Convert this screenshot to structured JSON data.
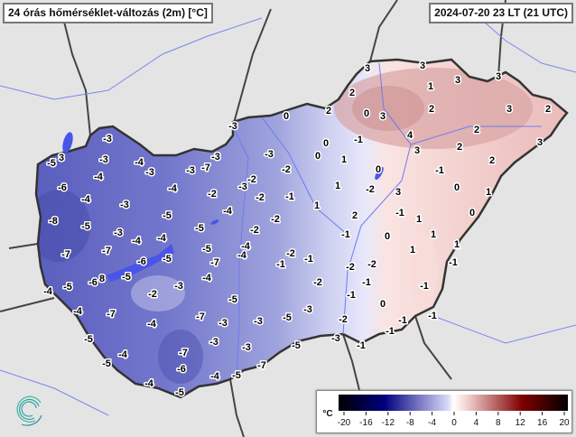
{
  "header": {
    "title": "24 órás hőmérséklet-változás (2m) [°C]",
    "timestamp": "2024-07-20 23 LT (21 UTC)"
  },
  "legend": {
    "unit": "°C",
    "ticks": [
      "-20",
      "-16",
      "-12",
      "-8",
      "-4",
      "0",
      "4",
      "8",
      "12",
      "16",
      "20"
    ],
    "range": [
      -20,
      20
    ],
    "colors": {
      "min": "#000000",
      "cold": "#00007f",
      "cool": "#dcdcfa",
      "zero": "#ffffff",
      "warm": "#f2c8c8",
      "hot": "#800000",
      "max": "#000000"
    }
  },
  "map": {
    "region": "Hungary",
    "value_labels": [
      "-3",
      "-3",
      "-5",
      "3",
      "-3",
      "-4",
      "-3",
      "-3",
      "-3",
      "-7",
      "-3",
      "-4",
      "-6",
      "-2",
      "-3",
      "-2",
      "-4",
      "-2",
      "-4",
      "-3",
      "-5",
      "-4",
      "-2",
      "-8",
      "-5",
      "-5",
      "-2",
      "-3",
      "-4",
      "-4",
      "-4",
      "-4",
      "-5",
      "-7",
      "-7",
      "-6",
      "-5",
      "-7",
      "-1",
      "-2",
      "-1",
      "-2",
      "-2",
      "1",
      "1",
      "-1",
      "-6",
      "8",
      "-5",
      "-4",
      "-4",
      "-5",
      "-2",
      "-3",
      "-2",
      "-1",
      "-1",
      "-5",
      "-1",
      "0",
      "-4",
      "-7",
      "-7",
      "-3",
      "-3",
      "-5",
      "-3",
      "-2",
      "-1",
      "-1",
      "-1",
      "-4",
      "-5",
      "-3",
      "-3",
      "-5",
      "-3",
      "-1",
      "-4",
      "-7",
      "-5",
      "-6",
      "-7",
      "-4",
      "-4",
      "-5",
      "-5",
      "3",
      "3",
      "3",
      "3",
      "1",
      "2",
      "2",
      "0",
      "0",
      "3",
      "2",
      "3",
      "2",
      "-1",
      "4",
      "3",
      "2",
      "3",
      "0",
      "0",
      "1",
      "2",
      "2",
      "0",
      "-1",
      "1",
      "-2",
      "3",
      "0",
      "1",
      "1",
      "2",
      "-1",
      "1",
      "0",
      "-1",
      "0",
      "1",
      "1",
      "-2",
      "-1"
    ],
    "colors": {
      "cold": "#5f63c0",
      "cool": "#c9cbef",
      "warm": "#f6d6d4",
      "hot": "#d49b9b",
      "water": "#4a55e8",
      "river": "#6a7cf0",
      "border": "#333333"
    }
  },
  "logo": {
    "name": "swirl-logo",
    "color": "#2aa6a0"
  }
}
